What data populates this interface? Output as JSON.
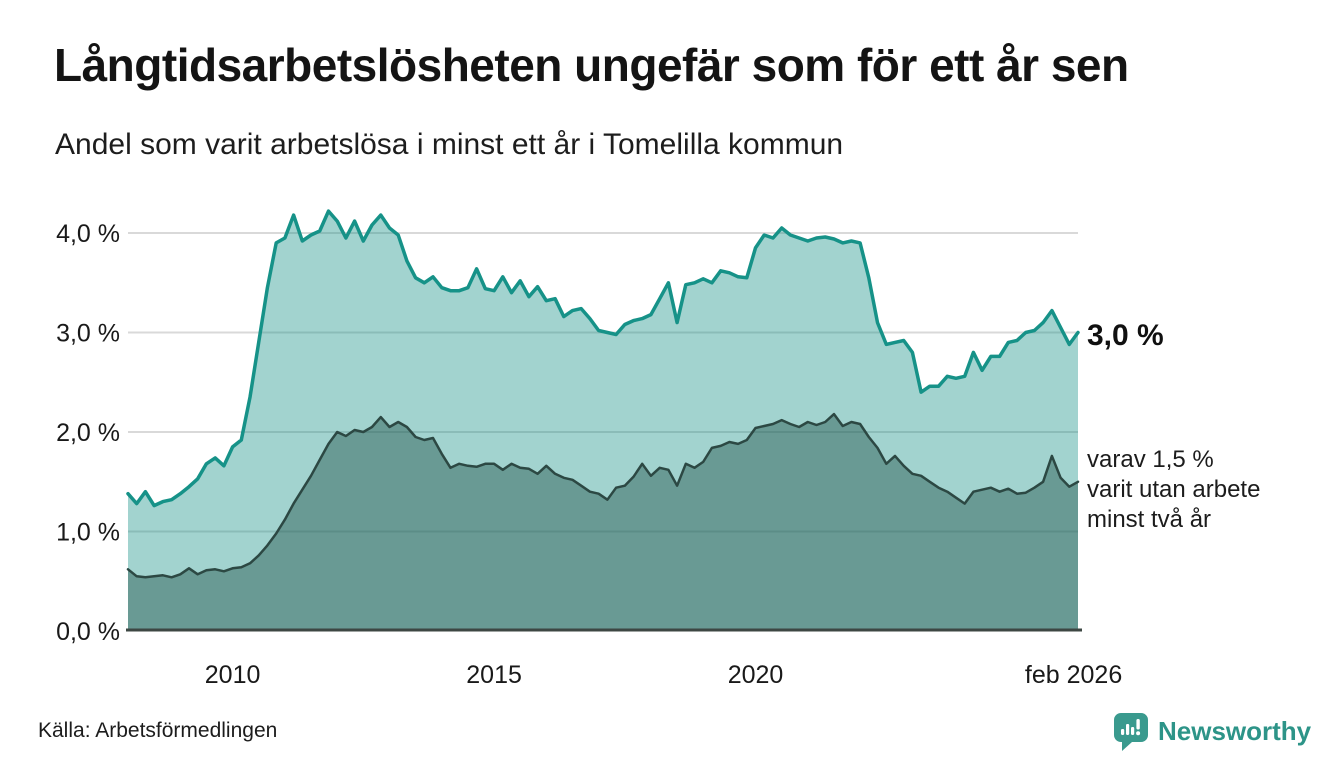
{
  "header": {
    "title": "Långtidsarbetslösheten ungefär som för ett år sen",
    "subtitle": "Andel som varit arbetslösa i minst ett år i Tomelilla kommun"
  },
  "chart_data": {
    "type": "area",
    "title": "Långtidsarbetslösheten ungefär som för ett år sen",
    "subtitle": "Andel som varit arbetslösa i minst ett år i Tomelilla kommun",
    "unit": "%",
    "x_start": 2008.0,
    "x_step_years": 0.1666667,
    "x_axis": {
      "ticks": [
        {
          "year": 2010,
          "label": "2010"
        },
        {
          "year": 2015,
          "label": "2015"
        },
        {
          "year": 2020,
          "label": "2020"
        },
        {
          "year": 2026.083,
          "label": "feb 2026"
        }
      ]
    },
    "y_axis": {
      "min": 0,
      "max": 4.4,
      "grid_color": "#d9d9d9",
      "axis_color": "#3d4743",
      "ticks": [
        {
          "value": 4,
          "label": "4,0 %"
        },
        {
          "value": 3,
          "label": "3,0 %"
        },
        {
          "value": 2,
          "label": "2,0 %"
        },
        {
          "value": 1,
          "label": "1,0 %"
        },
        {
          "value": 0,
          "label": "0,0 %"
        }
      ]
    },
    "series": [
      {
        "name": "Andel arbetslösa minst ett år",
        "color": "#169288",
        "fill": "rgba(23,146,134,0.40)",
        "line_width": 3.5,
        "end_value": 3.0,
        "values": [
          1.38,
          1.28,
          1.4,
          1.26,
          1.3,
          1.32,
          1.38,
          1.45,
          1.53,
          1.68,
          1.74,
          1.66,
          1.85,
          1.92,
          2.35,
          2.9,
          3.45,
          3.9,
          3.95,
          4.18,
          3.92,
          3.98,
          4.02,
          4.22,
          4.12,
          3.95,
          4.12,
          3.92,
          4.08,
          4.18,
          4.05,
          3.98,
          3.72,
          3.55,
          3.5,
          3.56,
          3.45,
          3.42,
          3.42,
          3.45,
          3.64,
          3.44,
          3.42,
          3.56,
          3.4,
          3.52,
          3.36,
          3.46,
          3.32,
          3.34,
          3.16,
          3.22,
          3.24,
          3.14,
          3.02,
          3.0,
          2.98,
          3.08,
          3.12,
          3.14,
          3.18,
          3.34,
          3.5,
          3.1,
          3.48,
          3.5,
          3.54,
          3.5,
          3.62,
          3.6,
          3.56,
          3.55,
          3.85,
          3.98,
          3.95,
          4.05,
          3.98,
          3.95,
          3.92,
          3.95,
          3.96,
          3.94,
          3.9,
          3.92,
          3.9,
          3.55,
          3.1,
          2.88,
          2.9,
          2.92,
          2.8,
          2.4,
          2.46,
          2.46,
          2.56,
          2.54,
          2.56,
          2.8,
          2.62,
          2.76,
          2.76,
          2.9,
          2.92,
          3.0,
          3.02,
          3.1,
          3.22,
          3.05,
          2.88,
          3.0
        ]
      },
      {
        "name": "varav utan arbete minst två år",
        "color": "#2C4843",
        "fill": "rgba(35,84,76,0.45)",
        "line_width": 2.5,
        "end_value": 1.5,
        "values": [
          0.62,
          0.55,
          0.54,
          0.55,
          0.56,
          0.54,
          0.57,
          0.63,
          0.57,
          0.61,
          0.62,
          0.6,
          0.63,
          0.64,
          0.68,
          0.76,
          0.86,
          0.98,
          1.12,
          1.28,
          1.42,
          1.56,
          1.72,
          1.88,
          2.0,
          1.96,
          2.02,
          2.0,
          2.05,
          2.15,
          2.05,
          2.1,
          2.05,
          1.95,
          1.92,
          1.94,
          1.78,
          1.64,
          1.68,
          1.66,
          1.65,
          1.68,
          1.68,
          1.62,
          1.68,
          1.64,
          1.63,
          1.58,
          1.66,
          1.58,
          1.54,
          1.52,
          1.46,
          1.4,
          1.38,
          1.32,
          1.44,
          1.46,
          1.55,
          1.68,
          1.56,
          1.64,
          1.62,
          1.46,
          1.68,
          1.64,
          1.7,
          1.84,
          1.86,
          1.9,
          1.88,
          1.92,
          2.04,
          2.06,
          2.08,
          2.12,
          2.08,
          2.05,
          2.1,
          2.07,
          2.1,
          2.18,
          2.06,
          2.1,
          2.08,
          1.95,
          1.84,
          1.68,
          1.76,
          1.66,
          1.58,
          1.56,
          1.5,
          1.44,
          1.4,
          1.34,
          1.28,
          1.4,
          1.42,
          1.44,
          1.4,
          1.43,
          1.38,
          1.39,
          1.44,
          1.5,
          1.76,
          1.54,
          1.45,
          1.5
        ]
      }
    ],
    "end_labels": {
      "primary": "3,0 %",
      "secondary_lines": [
        "varav 1,5 %",
        "varit utan arbete",
        "minst två år"
      ]
    }
  },
  "footer": {
    "source": "Källa: Arbetsförmedlingen",
    "brand": "Newsworthy",
    "brand_color": "#2D9488",
    "logo_color": "#3A9A8E"
  }
}
